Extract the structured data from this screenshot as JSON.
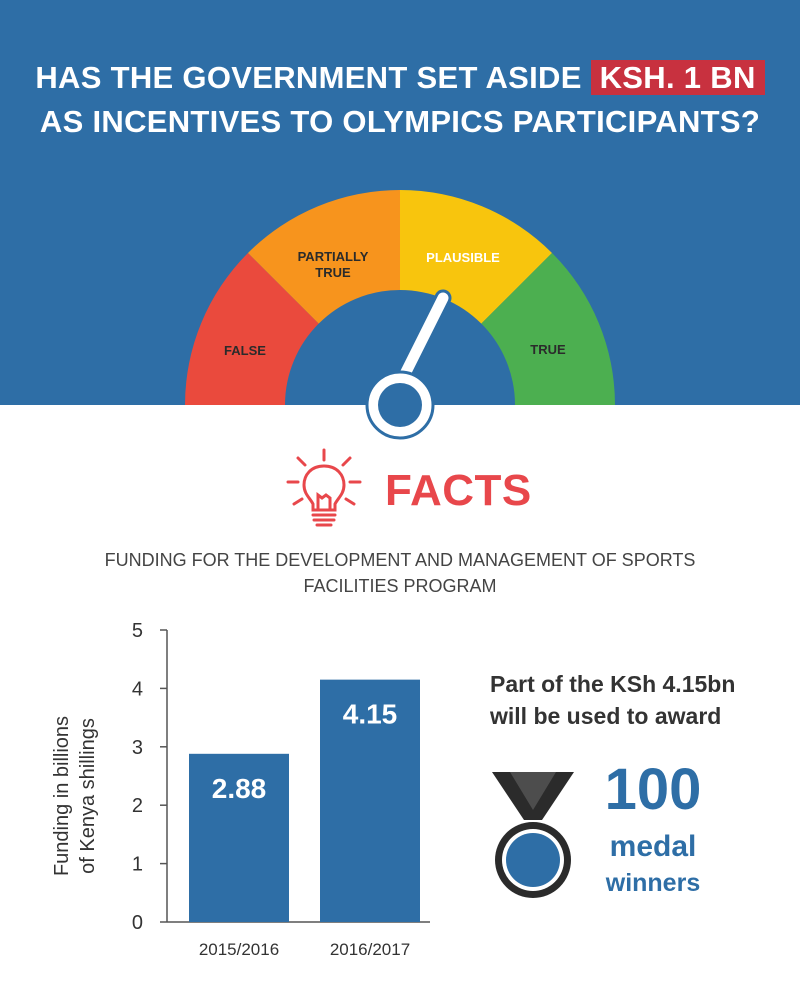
{
  "header": {
    "line1_prefix": "HAS THE GOVERNMENT SET ASIDE",
    "line1_highlight": "KSH. 1 BN",
    "line2": "AS INCENTIVES TO OLYMPICS PARTICIPANTS?"
  },
  "gauge": {
    "segments": [
      {
        "label": "FALSE",
        "color": "#ea4a3d"
      },
      {
        "label": "PARTIALLY TRUE",
        "line1": "PARTIALLY",
        "line2": "TRUE",
        "color": "#f7941d"
      },
      {
        "label": "PLAUSIBLE",
        "color": "#f8c50d"
      },
      {
        "label": "TRUE",
        "color": "#4caf50"
      }
    ],
    "verdict": "PLAUSIBLE"
  },
  "facts": {
    "title": "FACTS",
    "subtitle_line1": "FUNDING FOR THE DEVELOPMENT AND MANAGEMENT OF SPORTS",
    "subtitle_line2": "FACILITIES PROGRAM"
  },
  "chart_data": {
    "type": "bar",
    "categories": [
      "2015/2016",
      "2016/2017"
    ],
    "values": [
      2.88,
      4.15
    ],
    "data_labels": [
      "2.88",
      "4.15"
    ],
    "ylabel_line1": "Funding in billions",
    "ylabel_line2": "of Kenya shillings",
    "ylim": [
      0,
      5
    ],
    "yticks": [
      0,
      1,
      2,
      3,
      4,
      5
    ],
    "bar_color": "#2e6ea6",
    "grid": false
  },
  "aside": {
    "line1": "Part of the KSh 4.15bn",
    "line2": "will be used to award",
    "number": "100",
    "word1": "medal",
    "word2": "winners"
  },
  "colors": {
    "primary_blue": "#2e6ea6",
    "accent_red": "#e8474b",
    "highlight_red": "#c8313f"
  }
}
